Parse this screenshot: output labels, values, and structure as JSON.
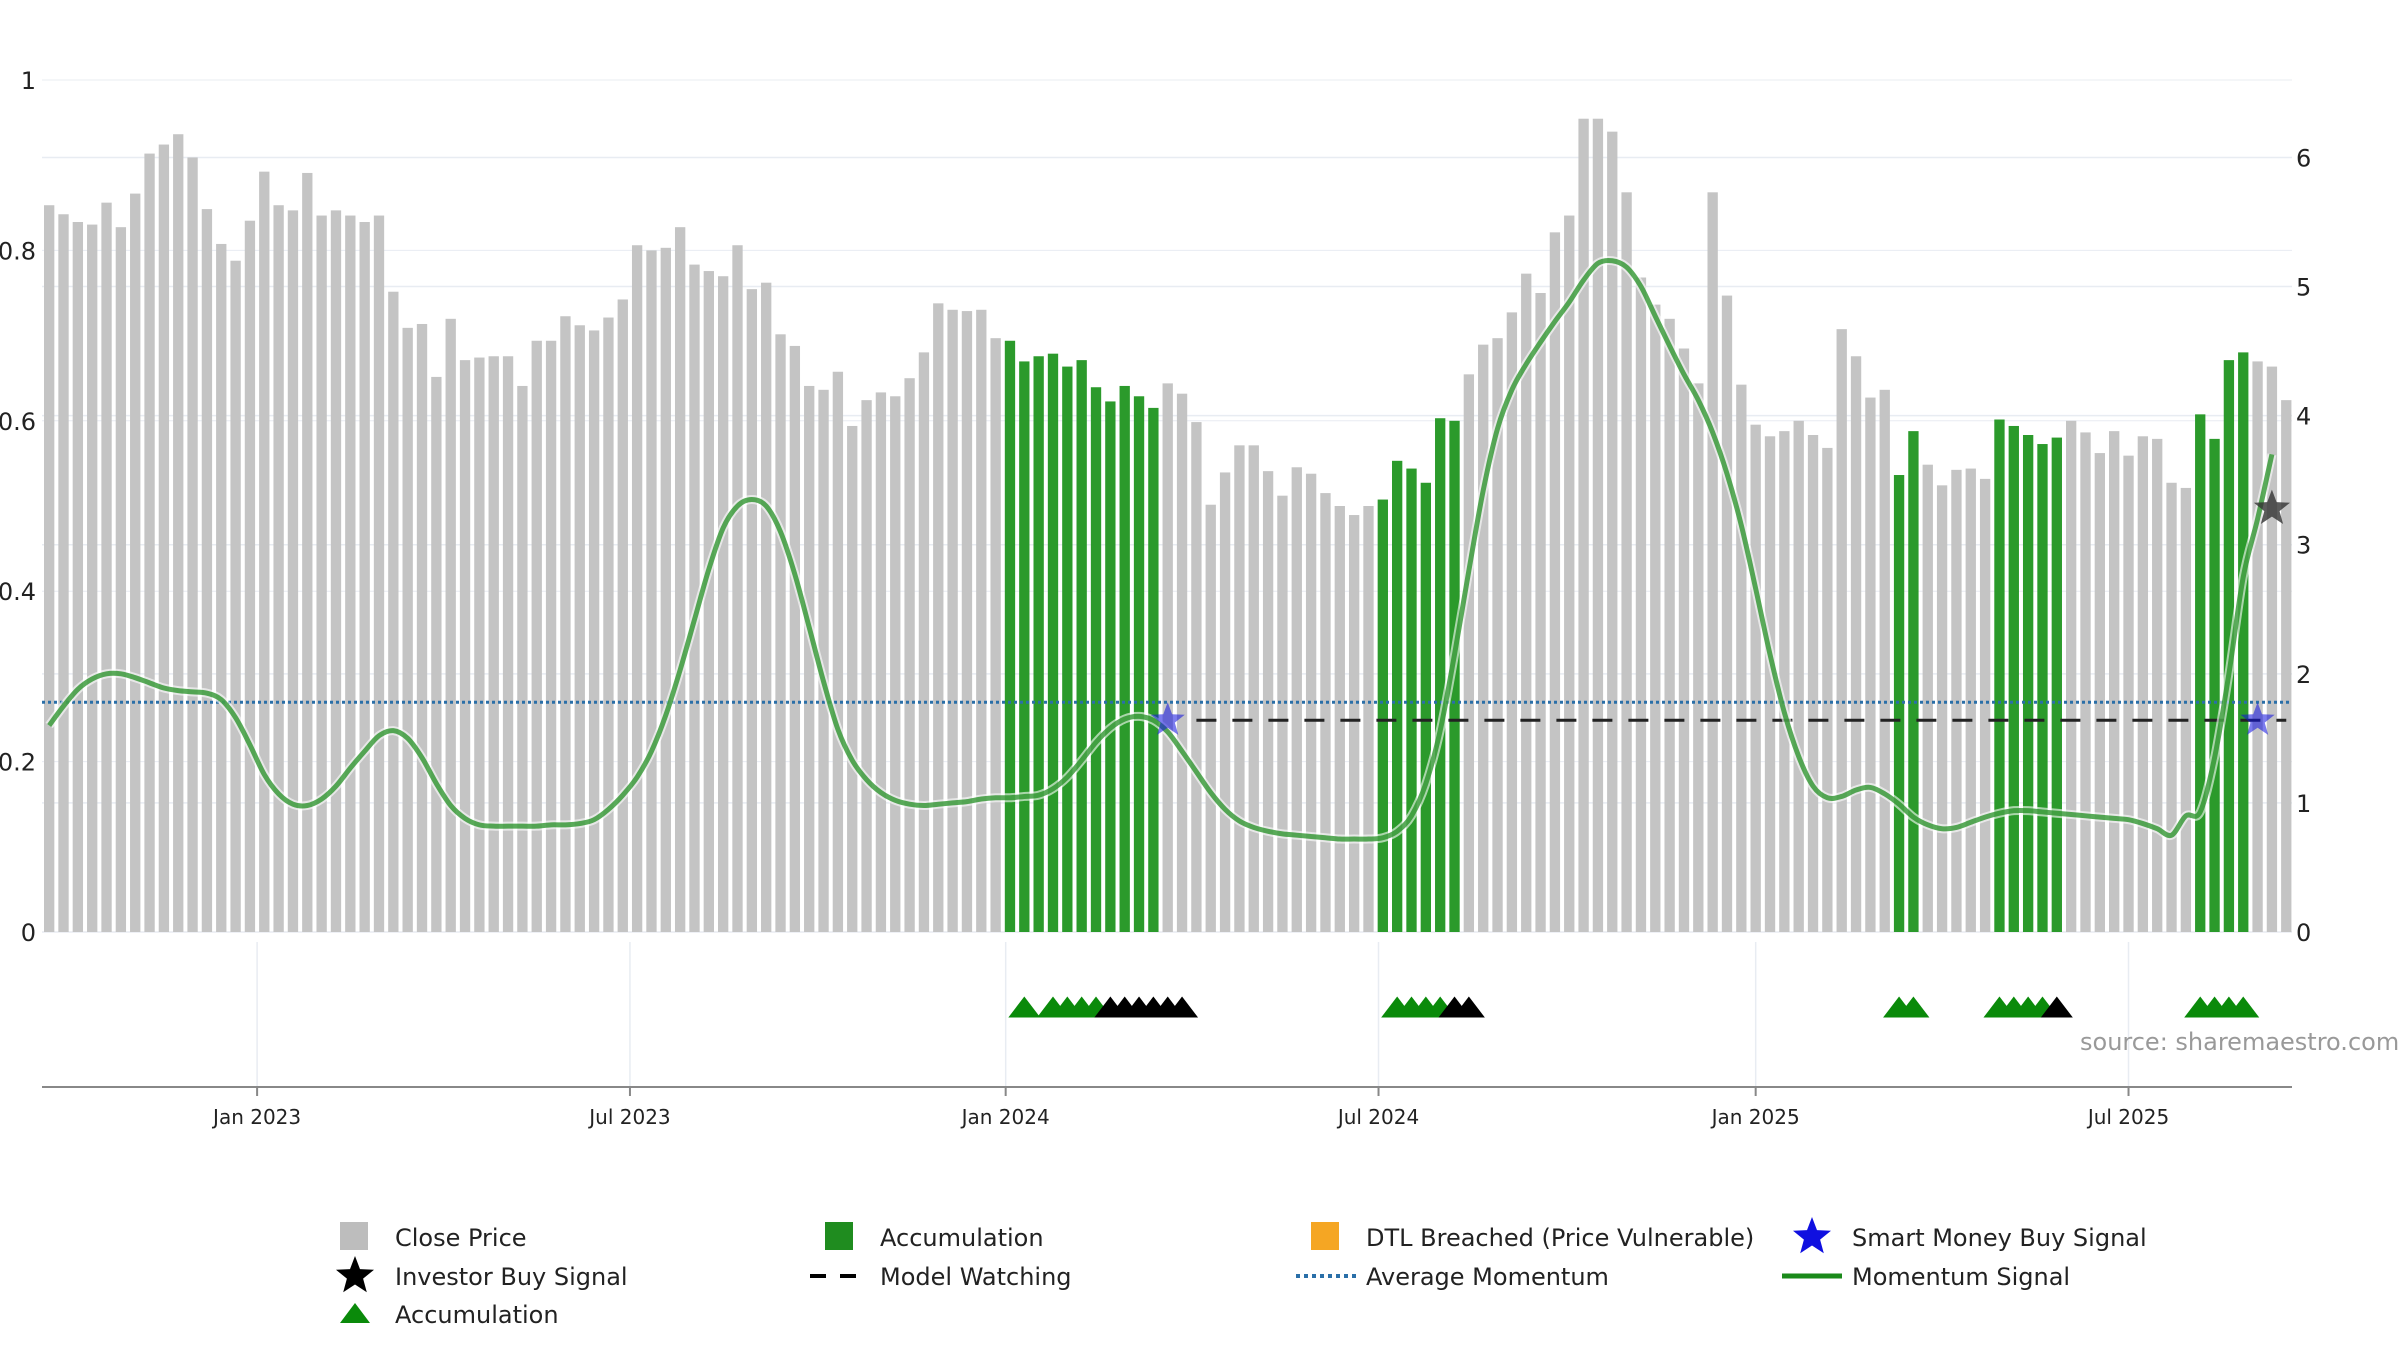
{
  "chart_data": {
    "type": "bar",
    "source": "source: sharemaestro.com",
    "left_axis": {
      "ticks": [
        "0",
        "0.2",
        "0.4",
        "0.6",
        "0.8",
        "1"
      ],
      "ylim": [
        0,
        1
      ]
    },
    "right_axis": {
      "ticks": [
        "0",
        "1",
        "2",
        "3",
        "4",
        "5",
        "6"
      ],
      "ylim": [
        0,
        6.6
      ]
    },
    "x_axis": {
      "ticks": [
        {
          "label": "Jan 2023",
          "week": 14.5
        },
        {
          "label": "Jul 2023",
          "week": 40.5
        },
        {
          "label": "Jan 2024",
          "week": 66.7
        },
        {
          "label": "Jul 2024",
          "week": 92.7
        },
        {
          "label": "Jan 2025",
          "week": 119.0
        },
        {
          "label": "Jul 2025",
          "week": 145.0
        }
      ],
      "xlim": [
        -0.5,
        156.4
      ]
    },
    "close_price_weekly": [
      5.63,
      5.56,
      5.5,
      5.48,
      5.65,
      5.46,
      5.72,
      6.03,
      6.1,
      6.18,
      6.0,
      5.6,
      5.33,
      5.2,
      5.51,
      5.89,
      5.63,
      5.59,
      5.88,
      5.55,
      5.59,
      5.55,
      5.5,
      5.55,
      4.96,
      4.68,
      4.71,
      4.3,
      4.75,
      4.43,
      4.45,
      4.46,
      4.46,
      4.23,
      4.58,
      4.58,
      4.77,
      4.7,
      4.66,
      4.76,
      4.9,
      5.32,
      5.28,
      5.3,
      5.46,
      5.17,
      5.12,
      5.08,
      5.32,
      4.98,
      5.03,
      4.63,
      4.54,
      4.23,
      4.2,
      4.34,
      3.92,
      4.12,
      4.18,
      4.15,
      4.29,
      4.49,
      4.87,
      4.82,
      4.81,
      4.82,
      4.6,
      4.58,
      4.42,
      4.46,
      4.48,
      4.38,
      4.43,
      4.22,
      4.11,
      4.23,
      4.15,
      4.06,
      4.25,
      4.17,
      3.95,
      3.31,
      3.56,
      3.77,
      3.77,
      3.57,
      3.38,
      3.6,
      3.55,
      3.4,
      3.3,
      3.23,
      3.3,
      3.35,
      3.65,
      3.59,
      3.48,
      3.98,
      3.96,
      4.32,
      4.55,
      4.6,
      4.8,
      5.1,
      4.95,
      5.42,
      5.55,
      6.3,
      6.3,
      6.2,
      5.73,
      5.07,
      4.86,
      4.75,
      4.52,
      4.25,
      5.73,
      4.93,
      4.24,
      3.93,
      3.84,
      3.88,
      3.96,
      3.85,
      3.75,
      4.67,
      4.46,
      4.14,
      4.2,
      3.54,
      3.88,
      3.62,
      3.46,
      3.58,
      3.59,
      3.51,
      3.97,
      3.92,
      3.85,
      3.78,
      3.83,
      3.96,
      3.87,
      3.71,
      3.88,
      3.69,
      3.84,
      3.82,
      3.48,
      3.44,
      4.01,
      3.82,
      4.43,
      4.49,
      4.42,
      4.38,
      4.12
    ],
    "accumulation_weeks": [
      67,
      68,
      69,
      70,
      71,
      72,
      73,
      74,
      75,
      76,
      77,
      93,
      94,
      95,
      96,
      97,
      98,
      129,
      130,
      136,
      137,
      138,
      139,
      140,
      150,
      151,
      152,
      153
    ],
    "momentum_signal": [
      [
        0,
        1.6
      ],
      [
        1,
        1.75
      ],
      [
        2,
        1.88
      ],
      [
        3,
        1.96
      ],
      [
        4,
        2.0
      ],
      [
        5,
        2.0
      ],
      [
        6,
        1.97
      ],
      [
        7,
        1.93
      ],
      [
        8,
        1.89
      ],
      [
        9,
        1.87
      ],
      [
        10,
        1.86
      ],
      [
        11,
        1.85
      ],
      [
        12,
        1.8
      ],
      [
        13,
        1.66
      ],
      [
        14,
        1.45
      ],
      [
        15,
        1.22
      ],
      [
        16,
        1.07
      ],
      [
        17,
        0.99
      ],
      [
        18,
        0.98
      ],
      [
        19,
        1.03
      ],
      [
        20,
        1.13
      ],
      [
        21,
        1.27
      ],
      [
        22,
        1.4
      ],
      [
        23,
        1.52
      ],
      [
        24,
        1.56
      ],
      [
        25,
        1.5
      ],
      [
        26,
        1.35
      ],
      [
        27,
        1.15
      ],
      [
        28,
        0.98
      ],
      [
        29,
        0.88
      ],
      [
        30,
        0.83
      ],
      [
        31,
        0.82
      ],
      [
        32,
        0.82
      ],
      [
        33,
        0.82
      ],
      [
        34,
        0.82
      ],
      [
        35,
        0.83
      ],
      [
        36,
        0.83
      ],
      [
        37,
        0.84
      ],
      [
        38,
        0.87
      ],
      [
        39,
        0.95
      ],
      [
        40,
        1.06
      ],
      [
        41,
        1.2
      ],
      [
        42,
        1.4
      ],
      [
        43,
        1.68
      ],
      [
        44,
        2.03
      ],
      [
        45,
        2.42
      ],
      [
        46,
        2.81
      ],
      [
        47,
        3.13
      ],
      [
        48,
        3.3
      ],
      [
        49,
        3.35
      ],
      [
        50,
        3.3
      ],
      [
        51,
        3.1
      ],
      [
        52,
        2.77
      ],
      [
        53,
        2.36
      ],
      [
        54,
        1.94
      ],
      [
        55,
        1.57
      ],
      [
        56,
        1.33
      ],
      [
        57,
        1.18
      ],
      [
        58,
        1.08
      ],
      [
        59,
        1.02
      ],
      [
        60,
        0.99
      ],
      [
        61,
        0.98
      ],
      [
        62,
        0.99
      ],
      [
        63,
        1.0
      ],
      [
        64,
        1.01
      ],
      [
        65,
        1.03
      ],
      [
        66,
        1.04
      ],
      [
        67,
        1.04
      ],
      [
        68,
        1.05
      ],
      [
        69,
        1.06
      ],
      [
        70,
        1.11
      ],
      [
        71,
        1.2
      ],
      [
        72,
        1.33
      ],
      [
        73,
        1.47
      ],
      [
        74,
        1.58
      ],
      [
        75,
        1.65
      ],
      [
        76,
        1.67
      ],
      [
        77,
        1.64
      ],
      [
        78,
        1.55
      ],
      [
        79,
        1.4
      ],
      [
        80,
        1.24
      ],
      [
        81,
        1.08
      ],
      [
        82,
        0.95
      ],
      [
        83,
        0.86
      ],
      [
        84,
        0.81
      ],
      [
        85,
        0.78
      ],
      [
        86,
        0.76
      ],
      [
        87,
        0.75
      ],
      [
        88,
        0.74
      ],
      [
        89,
        0.73
      ],
      [
        90,
        0.72
      ],
      [
        91,
        0.72
      ],
      [
        92,
        0.72
      ],
      [
        93,
        0.73
      ],
      [
        94,
        0.78
      ],
      [
        95,
        0.9
      ],
      [
        96,
        1.15
      ],
      [
        97,
        1.56
      ],
      [
        98,
        2.15
      ],
      [
        99,
        2.8
      ],
      [
        100,
        3.42
      ],
      [
        101,
        3.9
      ],
      [
        102,
        4.2
      ],
      [
        103,
        4.4
      ],
      [
        104,
        4.57
      ],
      [
        105,
        4.73
      ],
      [
        106,
        4.88
      ],
      [
        107,
        5.05
      ],
      [
        108,
        5.18
      ],
      [
        109,
        5.2
      ],
      [
        110,
        5.15
      ],
      [
        111,
        5.0
      ],
      [
        112,
        4.77
      ],
      [
        113,
        4.54
      ],
      [
        114,
        4.32
      ],
      [
        115,
        4.12
      ],
      [
        116,
        3.87
      ],
      [
        117,
        3.55
      ],
      [
        118,
        3.15
      ],
      [
        119,
        2.66
      ],
      [
        120,
        2.15
      ],
      [
        121,
        1.7
      ],
      [
        122,
        1.36
      ],
      [
        123,
        1.13
      ],
      [
        124,
        1.04
      ],
      [
        125,
        1.05
      ],
      [
        126,
        1.1
      ],
      [
        127,
        1.12
      ],
      [
        128,
        1.07
      ],
      [
        129,
        0.99
      ],
      [
        130,
        0.89
      ],
      [
        131,
        0.83
      ],
      [
        132,
        0.8
      ],
      [
        133,
        0.81
      ],
      [
        134,
        0.85
      ],
      [
        135,
        0.89
      ],
      [
        136,
        0.92
      ],
      [
        137,
        0.94
      ],
      [
        138,
        0.94
      ],
      [
        139,
        0.93
      ],
      [
        140,
        0.92
      ],
      [
        141,
        0.91
      ],
      [
        142,
        0.9
      ],
      [
        143,
        0.89
      ],
      [
        144,
        0.88
      ],
      [
        145,
        0.87
      ],
      [
        146,
        0.84
      ],
      [
        147,
        0.8
      ],
      [
        148,
        0.75
      ],
      [
        149,
        0.9
      ],
      [
        150,
        0.93
      ],
      [
        151,
        1.35
      ],
      [
        152,
        2.0
      ],
      [
        153,
        2.75
      ],
      [
        154,
        3.2
      ],
      [
        155,
        3.7
      ]
    ],
    "average_momentum": 1.78,
    "model_watching": {
      "level": 1.64,
      "from_week": 80,
      "to_week": 156
    },
    "smart_money_buy_signals": [
      {
        "week": 78,
        "value": 1.64
      },
      {
        "week": 154,
        "value": 1.64
      }
    ],
    "investor_buy_signals": [
      {
        "week": 155,
        "value": 3.28
      }
    ],
    "signal_triangles": {
      "green": [
        68,
        70,
        71,
        72,
        73,
        94,
        95,
        96,
        97,
        129,
        130,
        136,
        137,
        138,
        139,
        150,
        151,
        152,
        153
      ],
      "black": [
        74,
        75,
        76,
        77,
        78,
        79,
        98,
        99,
        140
      ]
    },
    "legend": [
      {
        "label": "Close Price",
        "marker": "square",
        "color": "#bdbdbd"
      },
      {
        "label": "Accumulation",
        "marker": "square",
        "color": "#1f8c1f"
      },
      {
        "label": "DTL Breached (Price Vulnerable)",
        "marker": "square",
        "color": "#f5a623"
      },
      {
        "label": "Smart Money Buy Signal",
        "marker": "star",
        "color": "#1010e0"
      },
      {
        "label": "Investor Buy Signal",
        "marker": "star",
        "color": "#000000"
      },
      {
        "label": "Model Watching",
        "marker": "dash",
        "color": "#000000"
      },
      {
        "label": "Average Momentum",
        "marker": "dotted",
        "color": "#2a6fa8"
      },
      {
        "label": "Momentum Signal",
        "marker": "line",
        "color": "#1a8a1a"
      },
      {
        "label": "Accumulation",
        "marker": "triangle",
        "color": "#0a8a0a"
      }
    ],
    "colors": {
      "close_price": "#c4c4c4",
      "accumulation": "#2b9a2b",
      "momentum": "#1a8a1a",
      "average_momentum": "#2a6fa8",
      "model_watching": "#222222",
      "smart_money": "#1010e0",
      "investor": "#333333",
      "triangle_green": "#0a8a0a",
      "triangle_black": "#000000",
      "grid": "#e8ecf2"
    }
  }
}
